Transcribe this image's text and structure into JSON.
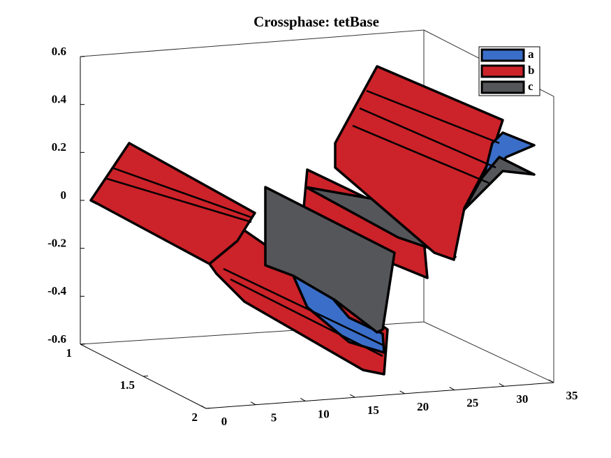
{
  "chart_data": {
    "type": "surface3d",
    "title": "Crossphase: tetBase",
    "xlim": [
      0,
      35
    ],
    "xticks": [
      0,
      5,
      10,
      15,
      20,
      25,
      30,
      35
    ],
    "ylim": [
      1,
      2
    ],
    "yticks": [
      1,
      1.5,
      2
    ],
    "zlim": [
      -0.6,
      0.6
    ],
    "zticks": [
      -0.6,
      -0.4,
      -0.2,
      0,
      0.2,
      0.4,
      0.6
    ],
    "legend": "top-right",
    "series": [
      {
        "name": "a",
        "color": "#3a6ec8"
      },
      {
        "name": "b",
        "color": "#cc2229"
      },
      {
        "name": "c",
        "color": "#55565a"
      }
    ]
  }
}
